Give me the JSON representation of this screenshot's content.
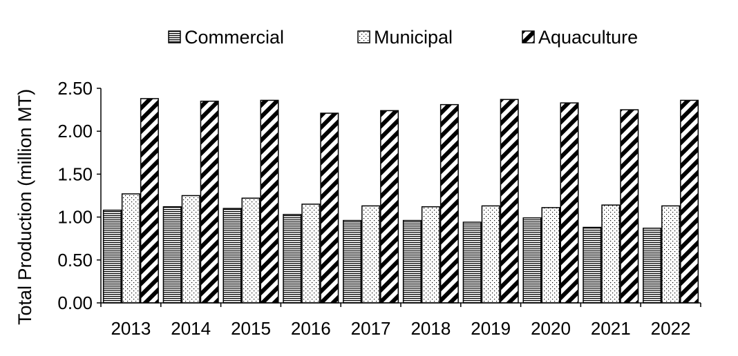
{
  "chart_data": {
    "type": "bar",
    "categories": [
      "2013",
      "2014",
      "2015",
      "2016",
      "2017",
      "2018",
      "2019",
      "2020",
      "2021",
      "2022"
    ],
    "series": [
      {
        "name": "Commercial",
        "values": [
          1.08,
          1.12,
          1.1,
          1.03,
          0.96,
          0.96,
          0.94,
          0.99,
          0.88,
          0.87
        ]
      },
      {
        "name": "Municipal",
        "values": [
          1.27,
          1.25,
          1.22,
          1.15,
          1.13,
          1.12,
          1.13,
          1.11,
          1.14,
          1.13
        ]
      },
      {
        "name": "Aquaculture",
        "values": [
          2.38,
          2.35,
          2.36,
          2.21,
          2.24,
          2.31,
          2.37,
          2.33,
          2.25,
          2.36
        ]
      }
    ],
    "title": "",
    "xlabel": "",
    "ylabel": "Total Production (million MT)",
    "ylim": [
      0,
      2.5
    ],
    "yticks": [
      "0.00",
      "0.50",
      "1.00",
      "1.50",
      "2.00",
      "2.50"
    ],
    "grid": false,
    "legend_position": "top"
  }
}
